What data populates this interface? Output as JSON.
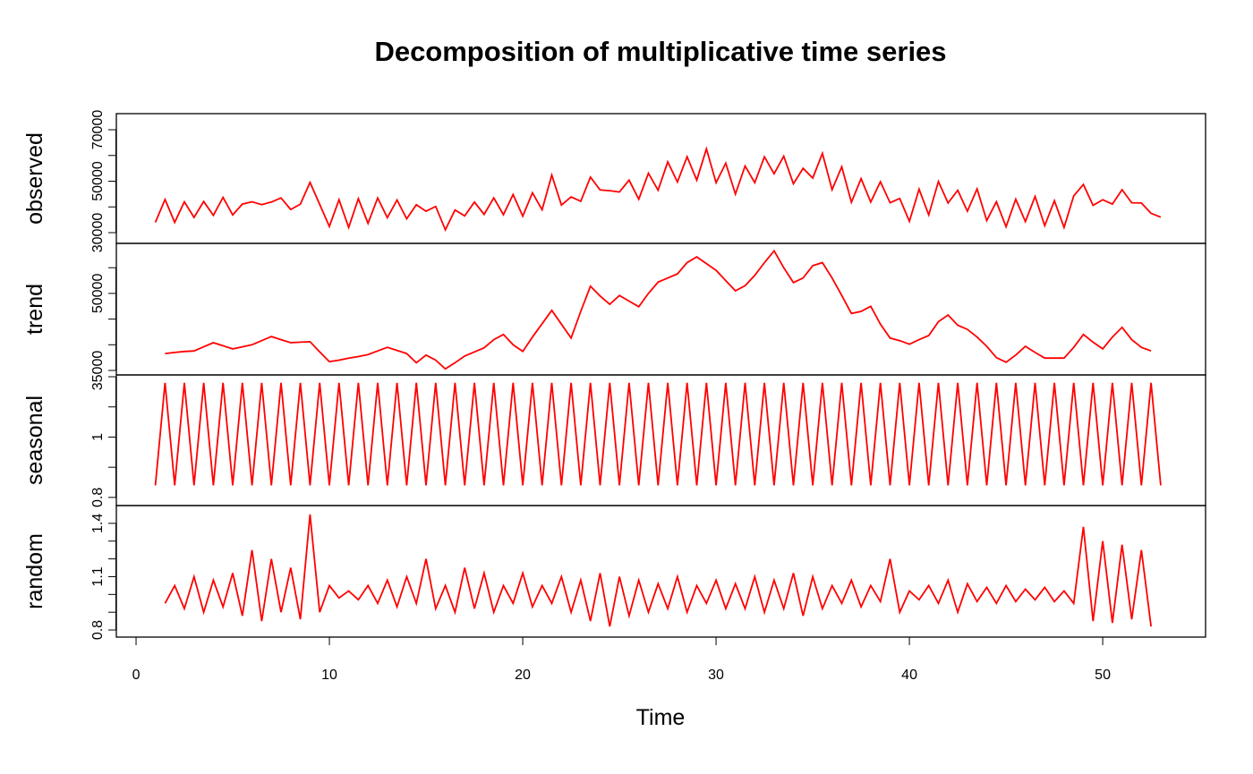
{
  "chart_data": {
    "type": "line",
    "title": "Decomposition of multiplicative time series",
    "xlabel": "Time",
    "color": "#ff0000",
    "xlim": [
      -1.02,
      55.32
    ],
    "xticks": [
      0,
      10,
      20,
      30,
      40,
      50
    ],
    "x": [
      1,
      1.5,
      2,
      2.5,
      3,
      3.5,
      4,
      4.5,
      5,
      5.5,
      6,
      6.5,
      7,
      7.5,
      8,
      8.5,
      9,
      9.5,
      10,
      10.5,
      11,
      11.5,
      12,
      12.5,
      13,
      13.5,
      14,
      14.5,
      15,
      15.5,
      16,
      16.5,
      17,
      17.5,
      18,
      18.5,
      19,
      19.5,
      20,
      20.5,
      21,
      21.5,
      22,
      22.5,
      23,
      23.5,
      24,
      24.5,
      25,
      25.5,
      26,
      26.5,
      27,
      27.5,
      28,
      28.5,
      29,
      29.5,
      30,
      30.5,
      31,
      31.5,
      32,
      32.5,
      33,
      33.5,
      34,
      34.5,
      35,
      35.5,
      36,
      36.5,
      37,
      37.5,
      38,
      38.5,
      39,
      39.5,
      40,
      40.5,
      41,
      41.5,
      42,
      42.5,
      43,
      43.5,
      44,
      44.5,
      45,
      45.5,
      46,
      46.5,
      47,
      47.5,
      48,
      48.5,
      49,
      49.5,
      50,
      50.5,
      51,
      51.5,
      52,
      52.5,
      53
    ],
    "panels": [
      {
        "ylabel": "observed",
        "ylim": [
          25826,
          76260
        ],
        "yticks": [
          30000,
          50000,
          70000
        ],
        "yminor_ticks": [
          40000,
          60000
        ],
        "values": [
          34000,
          42900,
          34000,
          42000,
          35900,
          42100,
          36700,
          43700,
          36900,
          41100,
          42000,
          40900,
          41900,
          43500,
          39000,
          41100,
          49500,
          41000,
          32400,
          42800,
          32000,
          43200,
          33600,
          43500,
          35800,
          42700,
          35400,
          40900,
          38300,
          40200,
          31100,
          38800,
          36500,
          41900,
          37100,
          43500,
          37000,
          44800,
          36400,
          45500,
          38900,
          52400,
          40700,
          43900,
          42200,
          51600,
          46600,
          46300,
          45800,
          50400,
          43000,
          53100,
          46500,
          57500,
          49700,
          59500,
          50400,
          62600,
          49400,
          57000,
          45000,
          55900,
          49400,
          59500,
          52900,
          59700,
          49000,
          55000,
          51200,
          60800,
          46700,
          55600,
          41800,
          51000,
          41900,
          49800,
          41600,
          43300,
          34400,
          46900,
          36900,
          49900,
          41500,
          46500,
          38300,
          47000,
          34700,
          42000,
          32300,
          43000,
          34300,
          44100,
          32700,
          42400,
          32000,
          44300,
          48700,
          40600,
          42800,
          41100,
          46700,
          41600,
          41500,
          37500,
          36000
        ]
      },
      {
        "ylabel": "trend",
        "ylim": [
          34129,
          59739
        ],
        "yticks": [
          35000,
          50000
        ],
        "yminor_ticks": [
          40000,
          45000,
          55000
        ],
        "values": [
          null,
          38300,
          38500,
          38700,
          38800,
          39600,
          40400,
          39800,
          39200,
          39600,
          40000,
          40800,
          41600,
          41000,
          40400,
          40500,
          40600,
          38600,
          36700,
          37000,
          37400,
          37700,
          38100,
          38800,
          39500,
          38900,
          38300,
          36500,
          38000,
          37000,
          35300,
          36500,
          37800,
          38600,
          39400,
          41000,
          42000,
          40000,
          38700,
          41500,
          44100,
          46700,
          44000,
          41300,
          46500,
          51400,
          49500,
          47900,
          49600,
          48500,
          47400,
          50000,
          52200,
          53000,
          53800,
          56000,
          57100,
          55800,
          54500,
          52500,
          50500,
          51500,
          53500,
          56000,
          58300,
          55000,
          52100,
          53000,
          55400,
          56000,
          53000,
          49600,
          46100,
          46500,
          47500,
          44000,
          41300,
          40800,
          40100,
          41000,
          41800,
          44500,
          45800,
          43800,
          43000,
          41500,
          39700,
          37500,
          36600,
          38000,
          39700,
          38500,
          37400,
          37400,
          37400,
          39500,
          42000,
          40500,
          39200,
          41500,
          43400,
          41000,
          39500,
          38800,
          null
        ]
      },
      {
        "ylabel": "seasonal",
        "ylim": [
          0.773,
          1.206
        ],
        "yticks": [
          0.8,
          1.0
        ],
        "yminor_ticks": [
          0.9,
          1.1,
          1.2
        ],
        "values": [
          0.84,
          1.18,
          0.84,
          1.18,
          0.84,
          1.18,
          0.84,
          1.18,
          0.84,
          1.18,
          0.84,
          1.18,
          0.84,
          1.18,
          0.84,
          1.18,
          0.84,
          1.18,
          0.84,
          1.18,
          0.84,
          1.18,
          0.84,
          1.18,
          0.84,
          1.18,
          0.84,
          1.18,
          0.84,
          1.18,
          0.84,
          1.18,
          0.84,
          1.18,
          0.84,
          1.18,
          0.84,
          1.18,
          0.84,
          1.18,
          0.84,
          1.18,
          0.84,
          1.18,
          0.84,
          1.18,
          0.84,
          1.18,
          0.84,
          1.18,
          0.84,
          1.18,
          0.84,
          1.18,
          0.84,
          1.18,
          0.84,
          1.18,
          0.84,
          1.18,
          0.84,
          1.18,
          0.84,
          1.18,
          0.84,
          1.18,
          0.84,
          1.18,
          0.84,
          1.18,
          0.84,
          1.18,
          0.84,
          1.18,
          0.84,
          1.18,
          0.84,
          1.18,
          0.84,
          1.18,
          0.84,
          1.18,
          0.84,
          1.18,
          0.84,
          1.18,
          0.84,
          1.18,
          0.84,
          1.18,
          0.84,
          1.18,
          0.84,
          1.18,
          0.84,
          1.18,
          0.84,
          1.18,
          0.84,
          1.18,
          0.84,
          1.18,
          0.84,
          1.18,
          0.84
        ]
      },
      {
        "ylabel": "random",
        "ylim": [
          0.76,
          1.5
        ],
        "yticks": [
          0.8,
          1.1,
          1.4
        ],
        "yminor_ticks": [
          0.9,
          1.0,
          1.2,
          1.3
        ],
        "values": [
          null,
          0.95,
          1.05,
          0.92,
          1.1,
          0.9,
          1.08,
          0.93,
          1.12,
          0.88,
          1.25,
          0.85,
          1.2,
          0.9,
          1.15,
          0.86,
          1.45,
          0.9,
          1.05,
          0.98,
          1.02,
          0.97,
          1.05,
          0.95,
          1.08,
          0.93,
          1.1,
          0.95,
          1.2,
          0.92,
          1.05,
          0.9,
          1.15,
          0.92,
          1.12,
          0.9,
          1.05,
          0.95,
          1.12,
          0.93,
          1.05,
          0.95,
          1.1,
          0.9,
          1.08,
          0.85,
          1.12,
          0.82,
          1.1,
          0.88,
          1.08,
          0.9,
          1.06,
          0.92,
          1.1,
          0.9,
          1.05,
          0.95,
          1.08,
          0.92,
          1.06,
          0.92,
          1.1,
          0.9,
          1.08,
          0.92,
          1.12,
          0.88,
          1.1,
          0.92,
          1.05,
          0.95,
          1.08,
          0.93,
          1.05,
          0.96,
          1.2,
          0.9,
          1.02,
          0.97,
          1.05,
          0.95,
          1.08,
          0.9,
          1.06,
          0.96,
          1.04,
          0.95,
          1.05,
          0.96,
          1.03,
          0.97,
          1.04,
          0.96,
          1.02,
          0.95,
          1.38,
          0.85,
          1.3,
          0.84,
          1.28,
          0.86,
          1.25,
          0.82,
          null
        ]
      }
    ]
  }
}
